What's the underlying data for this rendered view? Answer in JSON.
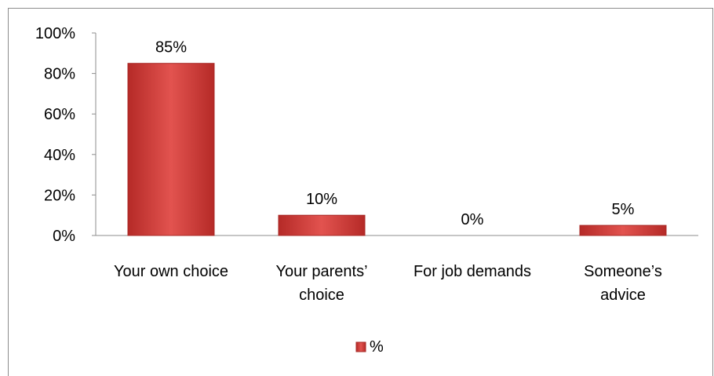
{
  "chart_data": {
    "type": "bar",
    "categories": [
      [
        "Your own choice"
      ],
      [
        "Your parents’",
        "choice"
      ],
      [
        "For job demands"
      ],
      [
        "Someone’s",
        "advice"
      ]
    ],
    "series": [
      {
        "name": "%",
        "values": [
          85,
          10,
          0,
          5
        ],
        "labels": [
          "85%",
          "10%",
          "0%",
          "5%"
        ],
        "color": "#d9413d"
      }
    ],
    "y_ticks": [
      "0%",
      "20%",
      "40%",
      "60%",
      "80%",
      "100%"
    ],
    "ylim": [
      0,
      100
    ],
    "grid": false,
    "legend_position": "bottom"
  }
}
